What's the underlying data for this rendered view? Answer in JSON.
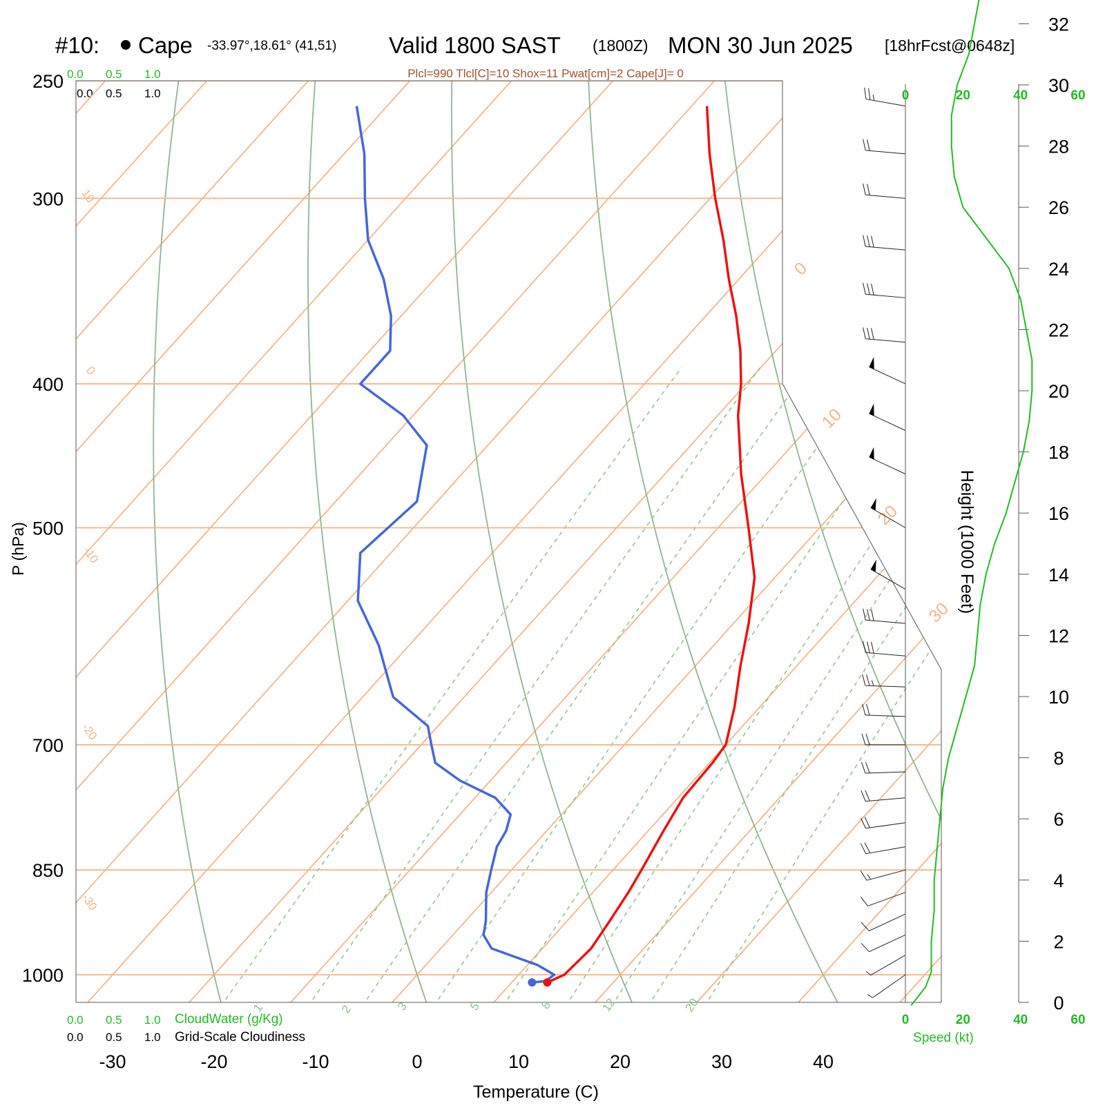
{
  "header": {
    "station_id": "#10:",
    "station_name": "Cape",
    "coords": "-33.97°,18.61° (41,51)",
    "valid": "Valid 1800 SAST",
    "zulu": "(1800Z)",
    "date": "MON 30 Jun 2025",
    "forecast": "[18hrFcst@0648z]"
  },
  "indices_line": "Plcl=990 Tlcl[C]=10 Shox=11 Pwat[cm]=2 Cape[J]= 0",
  "colors": {
    "isotherm": "#f5b585",
    "dry_adiabat": "#8cb88c",
    "mixing_ratio": "#8cc88c",
    "temperature": "#ee1111",
    "dewpoint": "#4466dd",
    "speed": "#22bb22",
    "green_text": "#22bb22",
    "index_text": "#a0522d"
  },
  "chart_data": {
    "type": "line",
    "title": "Skew-T log-P sounding",
    "xlabel": "Temperature (C)",
    "ylabel": "P (hPa)",
    "right_label": "Height (1000 Feet)",
    "x_ticks": [
      -30,
      -20,
      -10,
      0,
      10,
      20,
      30,
      40
    ],
    "pressure_ticks": [
      250,
      300,
      400,
      500,
      700,
      850,
      1000
    ],
    "height_ticks_kft": [
      0,
      2,
      4,
      6,
      8,
      10,
      12,
      14,
      16,
      18,
      20,
      22,
      24,
      26,
      28,
      30,
      32
    ],
    "isotherm_labels": [
      {
        "text": "10"
      },
      {
        "text": "0"
      },
      {
        "text": "-10"
      },
      {
        "text": "-20"
      },
      {
        "text": "-30"
      },
      {
        "text": "0"
      },
      {
        "text": "10"
      },
      {
        "text": "20"
      },
      {
        "text": "30"
      }
    ],
    "mixing_ratio_labels": [
      "1",
      "2",
      "3",
      "5",
      "8",
      "12",
      "20"
    ],
    "series": [
      {
        "name": "Temperature",
        "p": [
          1012,
          1000,
          960,
          920,
          880,
          850,
          800,
          760,
          720,
          700,
          660,
          620,
          580,
          540,
          500,
          460,
          420,
          400,
          380,
          360,
          340,
          320,
          300,
          280,
          260
        ],
        "t": [
          13.5,
          14.5,
          14.8,
          14.2,
          13.5,
          12.8,
          11.5,
          10.5,
          10.3,
          10.0,
          7.5,
          4.5,
          1.5,
          -2.0,
          -7.0,
          -12.5,
          -18.0,
          -20.5,
          -23.5,
          -27.0,
          -31.0,
          -35.0,
          -39.5,
          -44.0,
          -48.5
        ]
      },
      {
        "name": "Dewpoint",
        "p": [
          1012,
          1010,
          1000,
          985,
          960,
          940,
          920,
          880,
          850,
          820,
          800,
          780,
          760,
          740,
          720,
          700,
          680,
          650,
          600,
          560,
          520,
          480,
          440,
          420,
          400,
          380,
          360,
          340,
          320,
          300,
          280,
          260
        ],
        "t": [
          12.0,
          13.2,
          13.5,
          11.0,
          5.0,
          3.0,
          2.0,
          -0.5,
          -2.0,
          -3.5,
          -4.0,
          -5.0,
          -8.0,
          -13.0,
          -17.0,
          -19.0,
          -21.0,
          -27.0,
          -33.0,
          -39.0,
          -43.0,
          -42.0,
          -46.0,
          -51.0,
          -58.0,
          -58.0,
          -61.0,
          -65.0,
          -70.0,
          -74.0,
          -78.0,
          -83.0
        ]
      }
    ],
    "wind_speed_axis": {
      "ticks": [
        0,
        20,
        40,
        60
      ],
      "label": "Speed (kt)"
    },
    "wind_speed_profile": {
      "height_kft": [
        -0.1,
        0.5,
        1,
        2,
        3,
        4,
        5,
        6,
        7,
        8,
        9,
        10,
        11,
        12,
        13,
        14,
        15,
        16,
        17,
        18,
        19,
        20,
        21,
        22,
        23,
        24,
        25,
        26,
        27,
        28,
        29,
        30,
        31,
        32,
        33
      ],
      "kt": [
        2,
        7,
        9,
        9,
        10,
        10,
        11,
        12,
        13,
        15,
        18,
        21,
        24,
        25,
        26,
        28,
        31,
        35,
        38,
        41,
        43,
        44,
        44,
        42,
        40,
        36,
        28,
        20,
        17,
        16,
        16,
        18,
        22,
        24,
        26
      ]
    },
    "wind_barbs": [
      {
        "p": 1000,
        "shaft_deg": 235,
        "flags": 0,
        "full": 0,
        "half": 1
      },
      {
        "p": 970,
        "shaft_deg": 240,
        "flags": 0,
        "full": 0,
        "half": 1
      },
      {
        "p": 940,
        "shaft_deg": 245,
        "flags": 0,
        "full": 1,
        "half": 0
      },
      {
        "p": 910,
        "shaft_deg": 245,
        "flags": 0,
        "full": 1,
        "half": 0
      },
      {
        "p": 880,
        "shaft_deg": 250,
        "flags": 0,
        "full": 1,
        "half": 0
      },
      {
        "p": 850,
        "shaft_deg": 255,
        "flags": 0,
        "full": 1,
        "half": 1
      },
      {
        "p": 820,
        "shaft_deg": 260,
        "flags": 0,
        "full": 2,
        "half": 0
      },
      {
        "p": 790,
        "shaft_deg": 262,
        "flags": 0,
        "full": 2,
        "half": 0
      },
      {
        "p": 760,
        "shaft_deg": 265,
        "flags": 0,
        "full": 2,
        "half": 0
      },
      {
        "p": 730,
        "shaft_deg": 268,
        "flags": 0,
        "full": 2,
        "half": 0
      },
      {
        "p": 700,
        "shaft_deg": 270,
        "flags": 0,
        "full": 2,
        "half": 0
      },
      {
        "p": 670,
        "shaft_deg": 272,
        "flags": 0,
        "full": 2,
        "half": 0
      },
      {
        "p": 640,
        "shaft_deg": 272,
        "flags": 0,
        "full": 2,
        "half": 1
      },
      {
        "p": 610,
        "shaft_deg": 275,
        "flags": 0,
        "full": 3,
        "half": 0
      },
      {
        "p": 580,
        "shaft_deg": 275,
        "flags": 0,
        "full": 3,
        "half": 0
      },
      {
        "p": 550,
        "shaft_deg": 300,
        "flags": 1,
        "full": 0,
        "half": 0
      },
      {
        "p": 500,
        "shaft_deg": 300,
        "flags": 1,
        "full": 0,
        "half": 0
      },
      {
        "p": 460,
        "shaft_deg": 295,
        "flags": 1,
        "full": 0,
        "half": 0
      },
      {
        "p": 430,
        "shaft_deg": 295,
        "flags": 1,
        "full": 0,
        "half": 0
      },
      {
        "p": 400,
        "shaft_deg": 295,
        "flags": 1,
        "full": 0,
        "half": 0
      },
      {
        "p": 375,
        "shaft_deg": 275,
        "flags": 0,
        "full": 3,
        "half": 0
      },
      {
        "p": 350,
        "shaft_deg": 275,
        "flags": 0,
        "full": 3,
        "half": 0
      },
      {
        "p": 325,
        "shaft_deg": 275,
        "flags": 0,
        "full": 3,
        "half": 0
      },
      {
        "p": 300,
        "shaft_deg": 275,
        "flags": 0,
        "full": 2,
        "half": 0
      },
      {
        "p": 280,
        "shaft_deg": 275,
        "flags": 0,
        "full": 2,
        "half": 0
      },
      {
        "p": 260,
        "shaft_deg": 280,
        "flags": 0,
        "full": 2,
        "half": 1
      }
    ]
  },
  "cloud_scale": {
    "top_green": [
      "0.0",
      "0.5",
      "1.0"
    ],
    "top_black": [
      "0.0",
      "0.5",
      "1.0"
    ],
    "bottom_green": [
      "0.0",
      "0.5",
      "1.0"
    ],
    "bottom_black": [
      "0.0",
      "0.5",
      "1.0"
    ],
    "cloudwater_label": "CloudWater (g/Kg)",
    "cloudiness_label": "Grid-Scale Cloudiness"
  }
}
